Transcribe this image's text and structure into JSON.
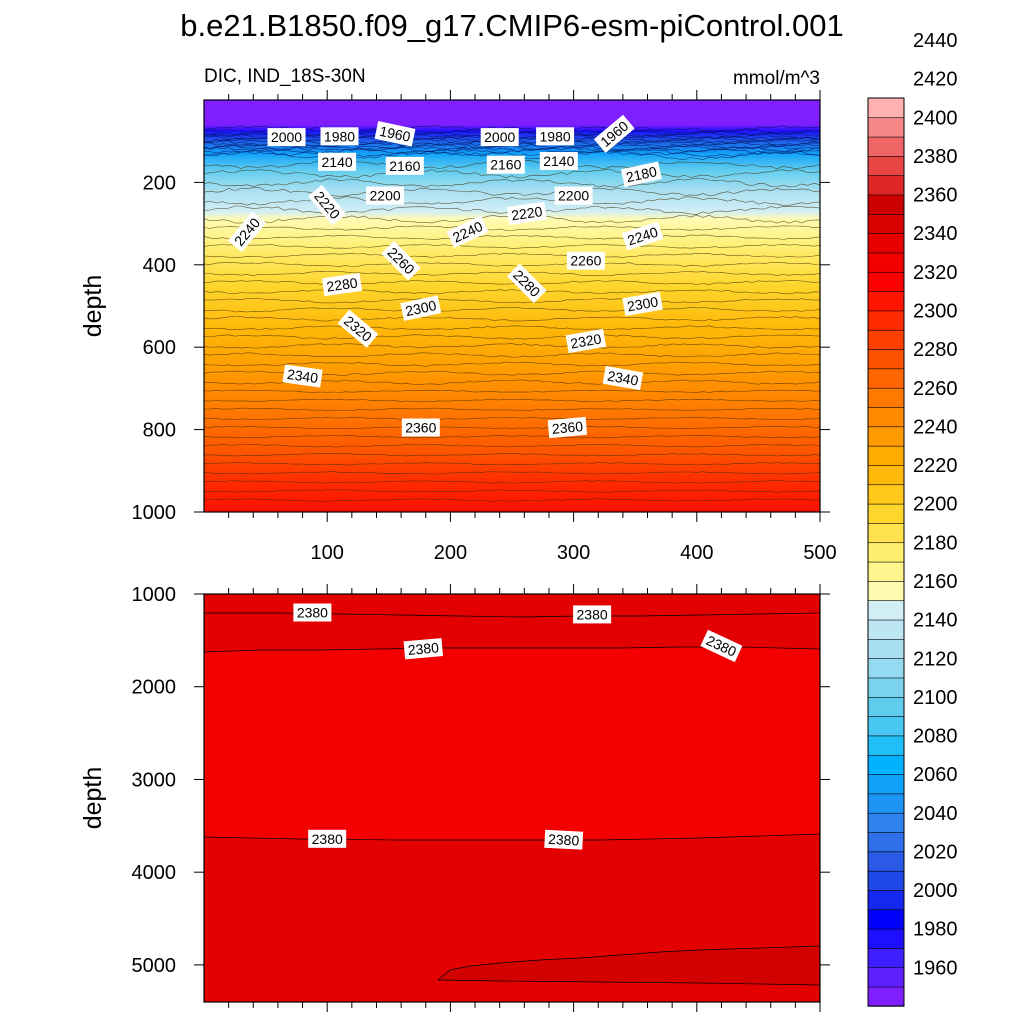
{
  "title": "b.e21.B1850.f09_g17.CMIP6-esm-piControl.001",
  "chart_data": {
    "type": "heatmap",
    "variable": "DIC, IND_18S-30N",
    "units": "mmol/m^3",
    "colorbar": {
      "levels": [
        1950,
        1960,
        1970,
        1980,
        1990,
        2000,
        2010,
        2020,
        2030,
        2040,
        2050,
        2060,
        2070,
        2080,
        2090,
        2100,
        2110,
        2120,
        2130,
        2140,
        2150,
        2160,
        2170,
        2180,
        2190,
        2200,
        2210,
        2220,
        2230,
        2240,
        2250,
        2260,
        2270,
        2280,
        2290,
        2300,
        2310,
        2320,
        2330,
        2340,
        2350,
        2360,
        2370,
        2380,
        2390,
        2400,
        2410,
        2420,
        2430,
        2440,
        2450
      ],
      "tick_labels": [
        "1960",
        "1980",
        "2000",
        "2020",
        "2040",
        "2060",
        "2080",
        "2100",
        "2120",
        "2140",
        "2160",
        "2180",
        "2200",
        "2220",
        "2240",
        "2260",
        "2280",
        "2300",
        "2320",
        "2340",
        "2360",
        "2380",
        "2400",
        "2420",
        "2440"
      ],
      "colors": [
        "#7f1fff",
        "#5f1fff",
        "#3f1fff",
        "#1f0fff",
        "#0000ff",
        "#1428f0",
        "#2048e8",
        "#2a5ae6",
        "#2f6fe9",
        "#2f84f0",
        "#1e94f5",
        "#10a2fa",
        "#00b2ff",
        "#20bff8",
        "#48c7f2",
        "#60cdef",
        "#7bd3ef",
        "#95daf0",
        "#a9dff0",
        "#bde6f2",
        "#d1eef6",
        "#fffbb1",
        "#fff58f",
        "#ffee70",
        "#ffe24d",
        "#ffd62e",
        "#ffc81a",
        "#ffb90a",
        "#ffab00",
        "#ff9b00",
        "#ff8a00",
        "#ff7800",
        "#ff6500",
        "#ff5200",
        "#ff3f00",
        "#ff2a00",
        "#ff1500",
        "#ff0000",
        "#f20000",
        "#e60000",
        "#d90000",
        "#cc0000",
        "#de2626",
        "#e84545",
        "#f06565",
        "#f88888",
        "#ffb0b0"
      ]
    },
    "upper_panel": {
      "xticks": [
        "100",
        "200",
        "300",
        "400",
        "500"
      ],
      "yticks": [
        "200",
        "400",
        "600",
        "800",
        "1000"
      ],
      "ylabel": "depth",
      "xrange": [
        0,
        500
      ],
      "yrange": [
        0,
        1000
      ],
      "contour_labels": [
        {
          "text": "2000",
          "x": 67,
          "y": 90
        },
        {
          "text": "1980",
          "x": 110,
          "y": 88
        },
        {
          "text": "1960",
          "x": 155,
          "y": 82
        },
        {
          "text": "2000",
          "x": 240,
          "y": 90
        },
        {
          "text": "1980",
          "x": 285,
          "y": 88
        },
        {
          "text": "1960",
          "x": 333,
          "y": 82
        },
        {
          "text": "2140",
          "x": 108,
          "y": 150
        },
        {
          "text": "2160",
          "x": 163,
          "y": 160
        },
        {
          "text": "2160",
          "x": 245,
          "y": 157
        },
        {
          "text": "2140",
          "x": 288,
          "y": 148
        },
        {
          "text": "2180",
          "x": 355,
          "y": 180
        },
        {
          "text": "2200",
          "x": 147,
          "y": 232
        },
        {
          "text": "2200",
          "x": 300,
          "y": 232
        },
        {
          "text": "2220",
          "x": 100,
          "y": 255
        },
        {
          "text": "2220",
          "x": 262,
          "y": 275
        },
        {
          "text": "2240",
          "x": 35,
          "y": 320
        },
        {
          "text": "2240",
          "x": 214,
          "y": 320
        },
        {
          "text": "2240",
          "x": 356,
          "y": 330
        },
        {
          "text": "2260",
          "x": 160,
          "y": 390
        },
        {
          "text": "2260",
          "x": 310,
          "y": 390
        },
        {
          "text": "2280",
          "x": 112,
          "y": 448
        },
        {
          "text": "2280",
          "x": 262,
          "y": 445
        },
        {
          "text": "2300",
          "x": 176,
          "y": 505
        },
        {
          "text": "2300",
          "x": 356,
          "y": 495
        },
        {
          "text": "2320",
          "x": 125,
          "y": 555
        },
        {
          "text": "2320",
          "x": 310,
          "y": 585
        },
        {
          "text": "2340",
          "x": 80,
          "y": 670
        },
        {
          "text": "2340",
          "x": 340,
          "y": 675
        },
        {
          "text": "2360",
          "x": 176,
          "y": 795
        },
        {
          "text": "2360",
          "x": 295,
          "y": 795
        }
      ]
    },
    "lower_panel": {
      "yticks": [
        "1000",
        "2000",
        "3000",
        "4000",
        "5000"
      ],
      "ylabel": "depth",
      "xrange": [
        0,
        500
      ],
      "yrange": [
        1000,
        5400
      ],
      "contour_labels": [
        {
          "text": "2380",
          "x": 88,
          "y": 1200
        },
        {
          "text": "2380",
          "x": 315,
          "y": 1220
        },
        {
          "text": "2380",
          "x": 420,
          "y": 1560
        },
        {
          "text": "2380",
          "x": 178,
          "y": 1590
        },
        {
          "text": "2380",
          "x": 100,
          "y": 3640
        },
        {
          "text": "2380",
          "x": 292,
          "y": 3650
        }
      ]
    }
  }
}
